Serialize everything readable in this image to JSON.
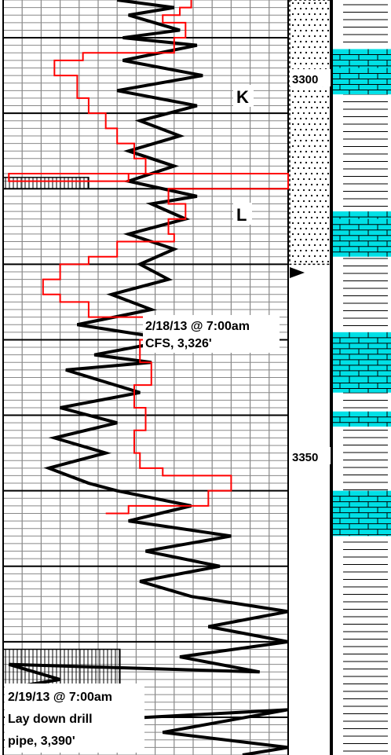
{
  "chart_data": {
    "type": "line",
    "y_axis": {
      "name": "depth",
      "range": [
        3285,
        3385
      ],
      "direction": "down",
      "tick_labels": [
        "3300",
        "3350"
      ]
    },
    "x_range": [
      0,
      100
    ],
    "series": [
      {
        "color": "#000000",
        "points": [
          [
            40,
            3285
          ],
          [
            60,
            3286
          ],
          [
            44,
            3287
          ],
          [
            62,
            3289
          ],
          [
            42,
            3290
          ],
          [
            68,
            3291
          ],
          [
            42,
            3293
          ],
          [
            70,
            3295
          ],
          [
            40,
            3297
          ],
          [
            68,
            3299
          ],
          [
            48,
            3301
          ],
          [
            62,
            3303
          ],
          [
            44,
            3305
          ],
          [
            60,
            3307
          ],
          [
            44,
            3309
          ],
          [
            68,
            3311
          ],
          [
            52,
            3312
          ],
          [
            64,
            3314
          ],
          [
            44,
            3316
          ],
          [
            60,
            3318
          ],
          [
            48,
            3320
          ],
          [
            58,
            3322
          ],
          [
            38,
            3324
          ],
          [
            52,
            3326
          ],
          [
            26,
            3328
          ],
          [
            60,
            3330
          ],
          [
            32,
            3332
          ],
          [
            52,
            3333
          ],
          [
            22,
            3334
          ],
          [
            48,
            3337
          ],
          [
            20,
            3339
          ],
          [
            40,
            3341
          ],
          [
            18,
            3343
          ],
          [
            36,
            3345
          ],
          [
            16,
            3347
          ],
          [
            30,
            3349
          ],
          [
            40,
            3350
          ],
          [
            66,
            3352
          ],
          [
            44,
            3354
          ],
          [
            80,
            3356
          ],
          [
            50,
            3358
          ],
          [
            76,
            3360
          ],
          [
            48,
            3362
          ],
          [
            66,
            3364
          ],
          [
            100,
            3366
          ],
          [
            72,
            3368
          ],
          [
            100,
            3370
          ],
          [
            62,
            3372
          ],
          [
            90,
            3374
          ],
          [
            2,
            3373
          ],
          [
            20,
            3375
          ],
          [
            4,
            3376
          ],
          [
            18,
            3378
          ],
          [
            8,
            3380
          ],
          [
            2,
            3381
          ],
          [
            100,
            3379
          ],
          [
            56,
            3382
          ],
          [
            100,
            3384
          ],
          [
            84,
            3385
          ]
        ]
      },
      {
        "color": "#ff0000",
        "points": [
          [
            66,
            3285
          ],
          [
            62,
            3286
          ],
          [
            56,
            3287
          ],
          [
            64,
            3288
          ],
          [
            60,
            3290
          ],
          [
            28,
            3292
          ],
          [
            18,
            3293
          ],
          [
            26,
            3295
          ],
          [
            30,
            3298
          ],
          [
            36,
            3300
          ],
          [
            40,
            3302
          ],
          [
            46,
            3304
          ],
          [
            50,
            3306
          ],
          [
            44,
            3308
          ],
          [
            2,
            3309
          ],
          [
            100,
            3308
          ],
          [
            58,
            3310
          ],
          [
            64,
            3312
          ],
          [
            58,
            3314
          ],
          [
            60,
            3316
          ],
          [
            40,
            3317
          ],
          [
            30,
            3319
          ],
          [
            20,
            3320
          ],
          [
            14,
            3322
          ],
          [
            20,
            3324
          ],
          [
            30,
            3325
          ],
          [
            66,
            3327
          ],
          [
            52,
            3328
          ],
          [
            48,
            3330
          ],
          [
            52,
            3333
          ],
          [
            46,
            3336
          ],
          [
            50,
            3339
          ],
          [
            46,
            3342
          ],
          [
            48,
            3345
          ],
          [
            56,
            3347
          ],
          [
            80,
            3348
          ],
          [
            72,
            3350
          ],
          [
            44,
            3352
          ],
          [
            36,
            3353
          ]
        ]
      }
    ],
    "shaded_bars": [
      {
        "top": 3308.5,
        "bottom": 3310,
        "to": 30
      },
      {
        "top": 3371,
        "bottom": 3383,
        "to": 41
      }
    ]
  },
  "markers": [
    {
      "text": "K",
      "depth": 3304
    },
    {
      "text": "L",
      "depth": 3314
    }
  ],
  "annotations": [
    {
      "lines": [
        "2/18/13 @ 7:00am",
        "CFS, 3,326'"
      ],
      "depth": 3326
    },
    {
      "lines": [
        "2/19/13 @ 7:00am",
        "Lay down drill",
        "pipe, 3,390'"
      ],
      "depth": 3377
    }
  ],
  "lithology": {
    "sandstone": {
      "top": 3285,
      "bottom": 3320
    },
    "limestone_bands": [
      [
        3291.5,
        3293
      ],
      [
        3293,
        3295
      ],
      [
        3294,
        3297.5
      ],
      [
        3313,
        3316
      ],
      [
        3314,
        3319
      ],
      [
        3329,
        3335
      ],
      [
        3335,
        3337
      ],
      [
        3339.5,
        3341.5
      ],
      [
        3350,
        3356
      ]
    ]
  },
  "colors": {
    "grid": "#888888",
    "grid_major": "#000000",
    "gamma": "#000000",
    "rate": "#ff0000",
    "limestone": "#00e0e6",
    "shale_lines": "#000000"
  }
}
